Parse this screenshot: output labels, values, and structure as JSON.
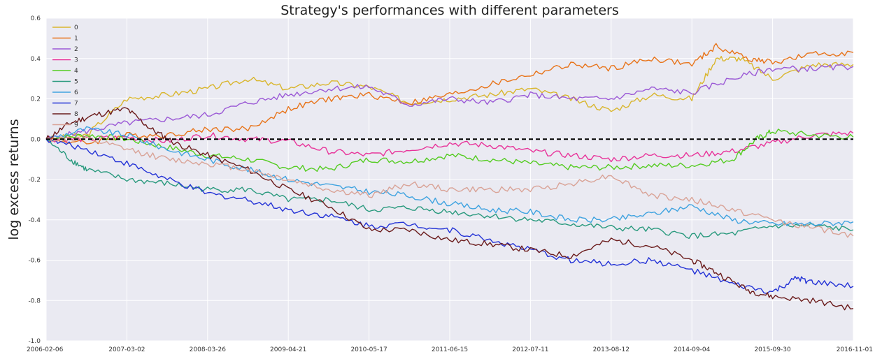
{
  "chart_data": {
    "type": "line",
    "title": "Strategy's performances with different parameters",
    "xlabel": "",
    "ylabel": "log excess returns",
    "ylim": [
      -1.0,
      0.6
    ],
    "yticks": [
      "0.6",
      "0.4",
      "0.2",
      "0.0",
      "-0.2",
      "-0.4",
      "-0.6",
      "-0.8",
      "-1.0"
    ],
    "ytick_values": [
      0.6,
      0.4,
      0.2,
      0.0,
      -0.2,
      -0.4,
      -0.6,
      -0.8,
      -1.0
    ],
    "x_tick_labels": [
      "2006-02-06",
      "2007-03-02",
      "2008-03-26",
      "2009-04-21",
      "2010-05-17",
      "2011-06-15",
      "2012-07-11",
      "2013-08-12",
      "2014-09-04",
      "2015-09-30",
      "2016-11-01"
    ],
    "x_range": [
      0,
      10
    ],
    "grid": true,
    "legend_position": "top-left",
    "reference_line": {
      "y": 0.0,
      "style": "dashed",
      "color": "#000000"
    },
    "series": [
      {
        "name": "0",
        "color": "#d9b62d",
        "points": [
          [
            0,
            0
          ],
          [
            0.5,
            0.02
          ],
          [
            1,
            0.2
          ],
          [
            1.5,
            0.22
          ],
          [
            2,
            0.25
          ],
          [
            2.5,
            0.3
          ],
          [
            3,
            0.25
          ],
          [
            3.5,
            0.28
          ],
          [
            4,
            0.26
          ],
          [
            4.5,
            0.18
          ],
          [
            5,
            0.2
          ],
          [
            5.5,
            0.22
          ],
          [
            6,
            0.25
          ],
          [
            6.5,
            0.2
          ],
          [
            7,
            0.14
          ],
          [
            7.5,
            0.22
          ],
          [
            8,
            0.2
          ],
          [
            8.3,
            0.4
          ],
          [
            8.6,
            0.4
          ],
          [
            9,
            0.3
          ],
          [
            9.5,
            0.37
          ],
          [
            10,
            0.37
          ]
        ]
      },
      {
        "name": "1",
        "color": "#e8741a",
        "points": [
          [
            0,
            0
          ],
          [
            0.5,
            -0.02
          ],
          [
            1,
            0.02
          ],
          [
            1.5,
            0.02
          ],
          [
            2,
            0.05
          ],
          [
            2.5,
            0.05
          ],
          [
            3,
            0.15
          ],
          [
            3.5,
            0.2
          ],
          [
            4,
            0.22
          ],
          [
            4.5,
            0.18
          ],
          [
            5,
            0.22
          ],
          [
            5.5,
            0.27
          ],
          [
            6,
            0.32
          ],
          [
            6.5,
            0.37
          ],
          [
            7,
            0.35
          ],
          [
            7.5,
            0.4
          ],
          [
            8,
            0.37
          ],
          [
            8.3,
            0.46
          ],
          [
            8.7,
            0.4
          ],
          [
            9,
            0.38
          ],
          [
            9.5,
            0.42
          ],
          [
            10,
            0.43
          ]
        ]
      },
      {
        "name": "2",
        "color": "#9b59d6",
        "points": [
          [
            0,
            0
          ],
          [
            0.5,
            0.04
          ],
          [
            1,
            0.08
          ],
          [
            1.5,
            0.1
          ],
          [
            2,
            0.12
          ],
          [
            2.5,
            0.18
          ],
          [
            3,
            0.22
          ],
          [
            3.5,
            0.25
          ],
          [
            4,
            0.26
          ],
          [
            4.5,
            0.17
          ],
          [
            5,
            0.2
          ],
          [
            5.5,
            0.18
          ],
          [
            6,
            0.22
          ],
          [
            6.5,
            0.2
          ],
          [
            7,
            0.2
          ],
          [
            7.5,
            0.25
          ],
          [
            8,
            0.23
          ],
          [
            8.5,
            0.3
          ],
          [
            9,
            0.35
          ],
          [
            9.5,
            0.35
          ],
          [
            10,
            0.36
          ]
        ]
      },
      {
        "name": "3",
        "color": "#e8349a",
        "points": [
          [
            0,
            0
          ],
          [
            0.5,
            0.0
          ],
          [
            1,
            0.01
          ],
          [
            1.5,
            -0.01
          ],
          [
            2,
            0.02
          ],
          [
            2.5,
            0.0
          ],
          [
            3,
            -0.01
          ],
          [
            3.5,
            -0.06
          ],
          [
            4,
            -0.08
          ],
          [
            4.5,
            -0.05
          ],
          [
            5,
            -0.02
          ],
          [
            5.5,
            -0.03
          ],
          [
            6,
            -0.06
          ],
          [
            6.5,
            -0.08
          ],
          [
            7,
            -0.1
          ],
          [
            7.5,
            -0.08
          ],
          [
            8,
            -0.08
          ],
          [
            8.5,
            -0.06
          ],
          [
            9,
            -0.02
          ],
          [
            9.5,
            0.02
          ],
          [
            10,
            0.03
          ]
        ]
      },
      {
        "name": "4",
        "color": "#55cc22",
        "points": [
          [
            0,
            0
          ],
          [
            0.5,
            0.02
          ],
          [
            1,
            0.0
          ],
          [
            1.5,
            -0.04
          ],
          [
            2,
            -0.08
          ],
          [
            2.5,
            -0.1
          ],
          [
            3,
            -0.14
          ],
          [
            3.5,
            -0.15
          ],
          [
            4,
            -0.1
          ],
          [
            4.5,
            -0.11
          ],
          [
            5,
            -0.08
          ],
          [
            5.5,
            -0.1
          ],
          [
            6,
            -0.12
          ],
          [
            6.5,
            -0.14
          ],
          [
            7,
            -0.14
          ],
          [
            7.5,
            -0.13
          ],
          [
            8,
            -0.13
          ],
          [
            8.5,
            -0.1
          ],
          [
            8.8,
            0.0
          ],
          [
            9,
            0.04
          ],
          [
            9.5,
            0.02
          ],
          [
            10,
            0.01
          ]
        ]
      },
      {
        "name": "5",
        "color": "#2a9a7e",
        "points": [
          [
            0,
            0
          ],
          [
            0.3,
            -0.1
          ],
          [
            0.5,
            -0.15
          ],
          [
            1,
            -0.2
          ],
          [
            1.5,
            -0.22
          ],
          [
            2,
            -0.25
          ],
          [
            2.5,
            -0.25
          ],
          [
            3,
            -0.3
          ],
          [
            3.5,
            -0.3
          ],
          [
            4,
            -0.35
          ],
          [
            4.5,
            -0.34
          ],
          [
            5,
            -0.36
          ],
          [
            5.5,
            -0.38
          ],
          [
            6,
            -0.4
          ],
          [
            6.5,
            -0.42
          ],
          [
            7,
            -0.44
          ],
          [
            7.5,
            -0.45
          ],
          [
            8,
            -0.48
          ],
          [
            8.5,
            -0.47
          ],
          [
            9,
            -0.43
          ],
          [
            9.5,
            -0.43
          ],
          [
            10,
            -0.45
          ]
        ]
      },
      {
        "name": "6",
        "color": "#3fa3e0",
        "points": [
          [
            0,
            0
          ],
          [
            0.5,
            0.05
          ],
          [
            1,
            0.02
          ],
          [
            1.5,
            -0.05
          ],
          [
            2,
            -0.1
          ],
          [
            2.5,
            -0.15
          ],
          [
            3,
            -0.2
          ],
          [
            3.5,
            -0.23
          ],
          [
            4,
            -0.26
          ],
          [
            4.5,
            -0.28
          ],
          [
            5,
            -0.32
          ],
          [
            5.5,
            -0.35
          ],
          [
            6,
            -0.36
          ],
          [
            6.5,
            -0.4
          ],
          [
            7,
            -0.4
          ],
          [
            7.5,
            -0.37
          ],
          [
            8,
            -0.33
          ],
          [
            8.5,
            -0.4
          ],
          [
            9,
            -0.42
          ],
          [
            9.5,
            -0.42
          ],
          [
            10,
            -0.41
          ]
        ]
      },
      {
        "name": "7",
        "color": "#2433d6",
        "points": [
          [
            0,
            0
          ],
          [
            0.5,
            -0.05
          ],
          [
            1,
            -0.12
          ],
          [
            1.5,
            -0.2
          ],
          [
            2,
            -0.27
          ],
          [
            2.5,
            -0.3
          ],
          [
            3,
            -0.35
          ],
          [
            3.5,
            -0.38
          ],
          [
            4,
            -0.43
          ],
          [
            4.5,
            -0.42
          ],
          [
            5,
            -0.45
          ],
          [
            5.5,
            -0.5
          ],
          [
            6,
            -0.55
          ],
          [
            6.5,
            -0.6
          ],
          [
            7,
            -0.62
          ],
          [
            7.5,
            -0.6
          ],
          [
            8,
            -0.65
          ],
          [
            8.5,
            -0.72
          ],
          [
            9,
            -0.76
          ],
          [
            9.3,
            -0.69
          ],
          [
            9.5,
            -0.71
          ],
          [
            10,
            -0.73
          ]
        ]
      },
      {
        "name": "8",
        "color": "#6b1c1c",
        "points": [
          [
            0,
            0
          ],
          [
            0.3,
            0.08
          ],
          [
            0.6,
            0.12
          ],
          [
            1,
            0.15
          ],
          [
            1.3,
            0.05
          ],
          [
            1.6,
            -0.02
          ],
          [
            2,
            -0.08
          ],
          [
            2.5,
            -0.15
          ],
          [
            3,
            -0.25
          ],
          [
            3.5,
            -0.33
          ],
          [
            4,
            -0.45
          ],
          [
            4.5,
            -0.45
          ],
          [
            5,
            -0.5
          ],
          [
            5.5,
            -0.52
          ],
          [
            6,
            -0.55
          ],
          [
            6.5,
            -0.58
          ],
          [
            7,
            -0.5
          ],
          [
            7.5,
            -0.53
          ],
          [
            8,
            -0.6
          ],
          [
            8.3,
            -0.66
          ],
          [
            8.7,
            -0.75
          ],
          [
            9,
            -0.78
          ],
          [
            9.5,
            -0.8
          ],
          [
            10,
            -0.84
          ]
        ]
      },
      {
        "name": "9",
        "color": "#d9a397",
        "points": [
          [
            0,
            0
          ],
          [
            0.5,
            0.0
          ],
          [
            1,
            -0.05
          ],
          [
            1.5,
            -0.1
          ],
          [
            2,
            -0.12
          ],
          [
            2.5,
            -0.15
          ],
          [
            3,
            -0.2
          ],
          [
            3.5,
            -0.25
          ],
          [
            4,
            -0.28
          ],
          [
            4.5,
            -0.22
          ],
          [
            5,
            -0.25
          ],
          [
            5.5,
            -0.25
          ],
          [
            6,
            -0.25
          ],
          [
            6.5,
            -0.22
          ],
          [
            7,
            -0.18
          ],
          [
            7.5,
            -0.28
          ],
          [
            8,
            -0.3
          ],
          [
            8.5,
            -0.35
          ],
          [
            9,
            -0.4
          ],
          [
            9.5,
            -0.44
          ],
          [
            10,
            -0.48
          ]
        ]
      }
    ]
  }
}
